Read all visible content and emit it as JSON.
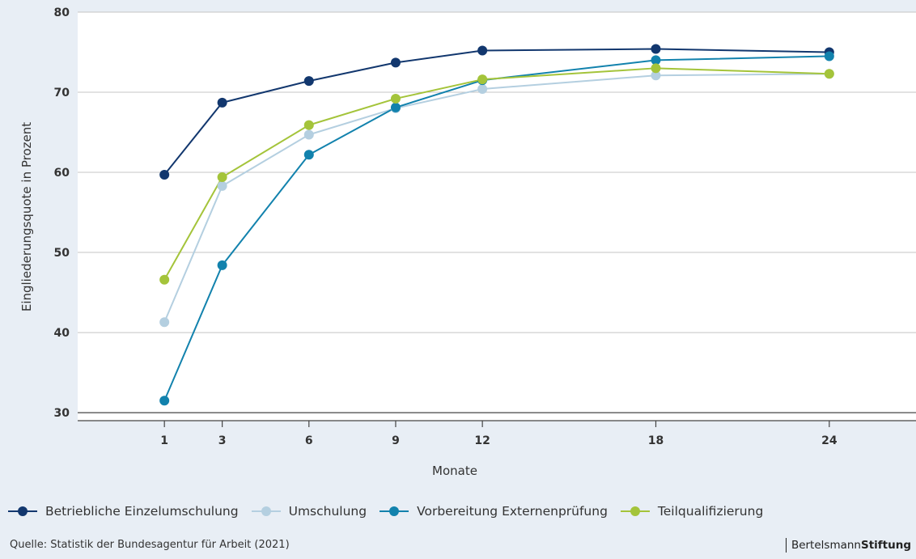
{
  "chart_data": {
    "type": "line",
    "xlabel": "Monate",
    "ylabel": "Eingliederungsquote in Prozent",
    "x": [
      1,
      3,
      6,
      9,
      12,
      18,
      24
    ],
    "xticks": [
      "1",
      "3",
      "6",
      "9",
      "12",
      "18",
      "24"
    ],
    "xlim": [
      -2,
      27
    ],
    "ylim": [
      29,
      80
    ],
    "yticks": [
      30,
      40,
      50,
      60,
      70,
      80
    ],
    "grid": true,
    "legend": "bottom",
    "series": [
      {
        "name": "Betriebliche Einzelumschulung",
        "color": "#12376e",
        "values": [
          59.7,
          68.7,
          71.4,
          73.7,
          75.2,
          75.4,
          75.0
        ]
      },
      {
        "name": "Umschulung",
        "color": "#b4cfe0",
        "values": [
          41.3,
          58.3,
          64.7,
          68.0,
          70.4,
          72.1,
          72.3
        ]
      },
      {
        "name": "Vorbereitung Externenprüfung",
        "color": "#1282ad",
        "values": [
          31.5,
          48.4,
          62.2,
          68.1,
          71.5,
          74.0,
          74.5
        ]
      },
      {
        "name": "Teilqualifizierung",
        "color": "#a4c43a",
        "values": [
          46.6,
          59.4,
          65.9,
          69.2,
          71.6,
          73.0,
          72.3
        ]
      }
    ]
  },
  "footer": {
    "source": "Quelle: Statistik der Bundesagentur für Arbeit (2021)",
    "brand_light": "Bertelsmann",
    "brand_bold": "Stiftung"
  }
}
